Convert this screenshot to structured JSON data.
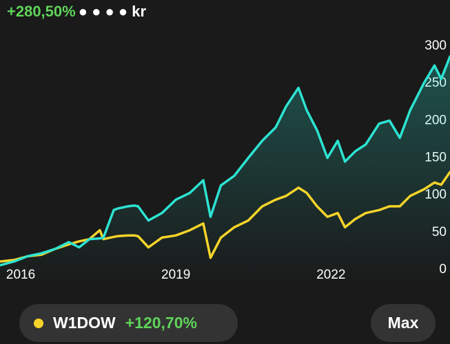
{
  "header": {
    "return": "+280,50%",
    "balance": "● ● ● ● kr"
  },
  "chart_data": {
    "type": "line",
    "x": [
      2015.6,
      2015.87,
      2016.13,
      2016.4,
      2016.67,
      2016.93,
      2017.13,
      2017.33,
      2017.53,
      2017.6,
      2017.8,
      2017.87,
      2018.07,
      2018.2,
      2018.27,
      2018.47,
      2018.73,
      2019.0,
      2019.27,
      2019.53,
      2019.67,
      2019.87,
      2020.13,
      2020.4,
      2020.67,
      2020.93,
      2021.13,
      2021.37,
      2021.53,
      2021.73,
      2021.93,
      2022.13,
      2022.27,
      2022.47,
      2022.67,
      2022.93,
      2023.13,
      2023.33,
      2023.53,
      2023.8,
      2024.0,
      2024.13,
      2024.3
    ],
    "series": [
      {
        "color": "#2de3d2",
        "values": [
          6,
          11,
          18,
          22,
          28,
          37,
          30,
          41,
          42,
          43,
          80,
          82,
          85,
          86,
          85,
          66,
          76,
          94,
          103,
          120,
          71,
          113,
          126,
          150,
          173,
          191,
          219,
          244,
          214,
          187,
          150,
          173,
          145,
          159,
          168,
          196,
          200,
          177,
          214,
          251,
          274,
          256,
          286
        ]
      },
      {
        "name": "W1DOW",
        "change": "+120,70%",
        "color": "#f5d42a",
        "values": [
          11,
          13,
          18,
          20,
          28,
          34,
          38,
          41,
          53,
          41,
          44,
          45,
          46,
          46,
          45,
          30,
          43,
          46,
          53,
          62,
          16,
          43,
          57,
          66,
          85,
          94,
          99,
          110,
          103,
          85,
          71,
          76,
          57,
          68,
          76,
          80,
          85,
          85,
          99,
          108,
          117,
          114,
          131
        ]
      }
    ],
    "xlim": [
      2015.6,
      2024.3
    ],
    "xticks": [
      2016,
      2019,
      2022
    ],
    "ylim": [
      0,
      300
    ],
    "yticks": [
      0,
      50,
      100,
      150,
      200,
      250,
      300
    ],
    "grid": false,
    "range_button": "Max"
  }
}
